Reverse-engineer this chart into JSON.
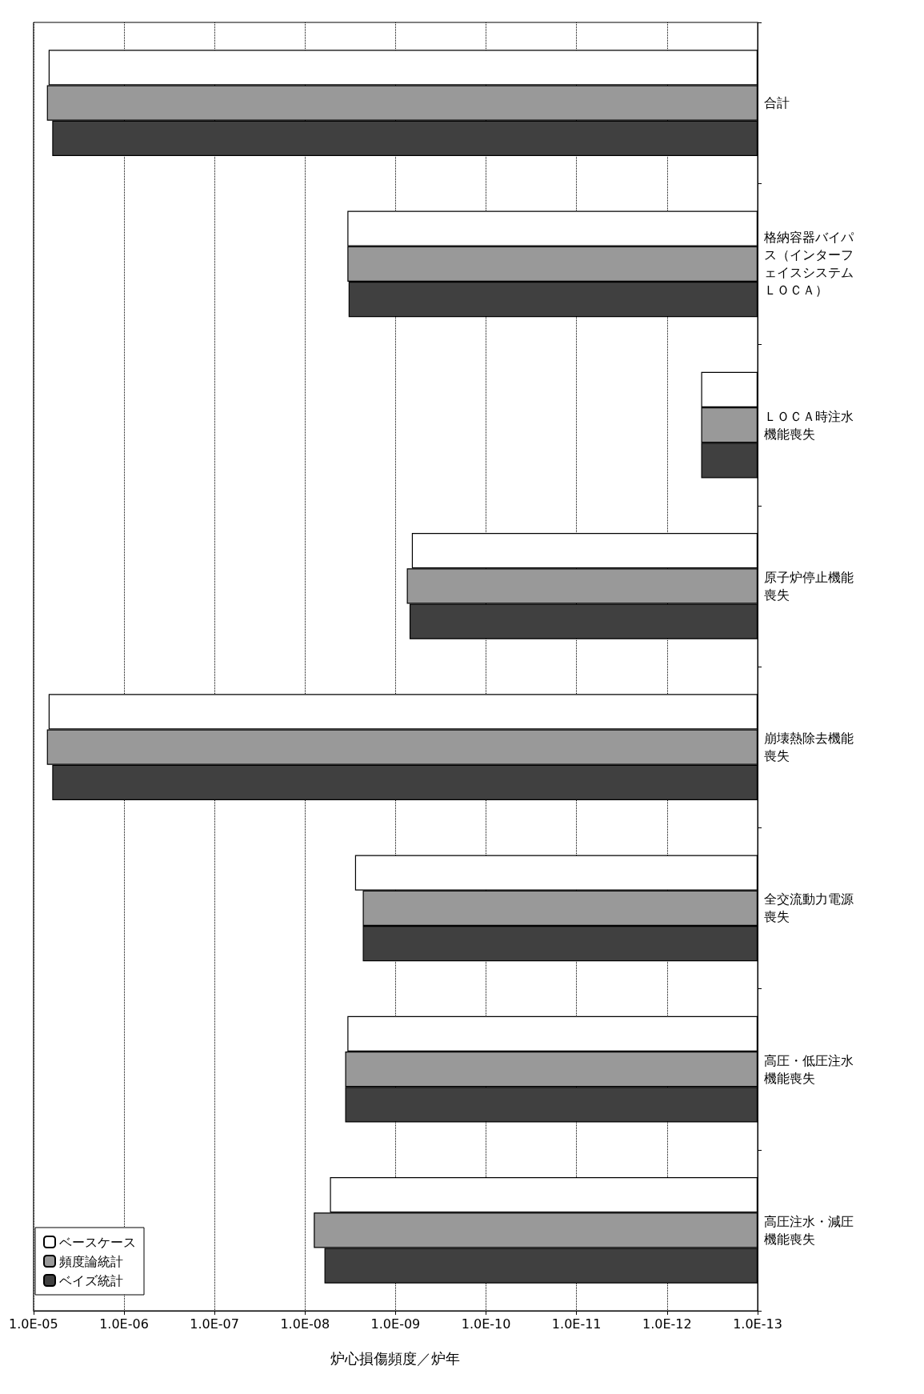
{
  "chart_data": {
    "type": "bar",
    "orientation": "horizontal",
    "xlabel": "炉心損傷頻度／炉年",
    "categories": [
      "合計",
      "格納容器バイパス（インターフェイスシステムＬＯＣＡ）",
      "ＬＯＣＡ時注水機能喪失",
      "原子炉停止機能喪失",
      "崩壊熱除去機能喪失",
      "全交流動力電源喪失",
      "高圧・低圧注水機能喪失",
      "高圧注水・減圧機能喪失"
    ],
    "series": [
      {
        "name": "ベースケース",
        "color": "#ffffff",
        "values": [
          6.8e-06,
          3.4e-09,
          4.2e-13,
          6.6e-10,
          6.8e-06,
          2.8e-09,
          3.4e-09,
          5.3e-09
        ]
      },
      {
        "name": "頻度論統計",
        "color": "#999999",
        "values": [
          7.1e-06,
          3.4e-09,
          4.2e-13,
          7.5e-10,
          7.1e-06,
          2.3e-09,
          3.6e-09,
          8e-09
        ]
      },
      {
        "name": "ベイズ統計",
        "color": "#404040",
        "values": [
          6.2e-06,
          3.3e-09,
          4.2e-13,
          7e-10,
          6.2e-06,
          2.3e-09,
          3.6e-09,
          6.1e-09
        ]
      }
    ],
    "xlim": [
      1e-05,
      1e-13
    ],
    "xticks": [
      {
        "value": 1e-05,
        "label": "1.0E-05"
      },
      {
        "value": 1e-06,
        "label": "1.0E-06"
      },
      {
        "value": 1e-07,
        "label": "1.0E-07"
      },
      {
        "value": 1e-08,
        "label": "1.0E-08"
      },
      {
        "value": 1e-09,
        "label": "1.0E-09"
      },
      {
        "value": 1e-10,
        "label": "1.0E-10"
      },
      {
        "value": 1e-11,
        "label": "1.0E-11"
      },
      {
        "value": 1e-12,
        "label": "1.0E-12"
      },
      {
        "value": 1e-13,
        "label": "1.0E-13"
      }
    ],
    "log": "x",
    "grid": "x",
    "legend": "bottom left"
  }
}
